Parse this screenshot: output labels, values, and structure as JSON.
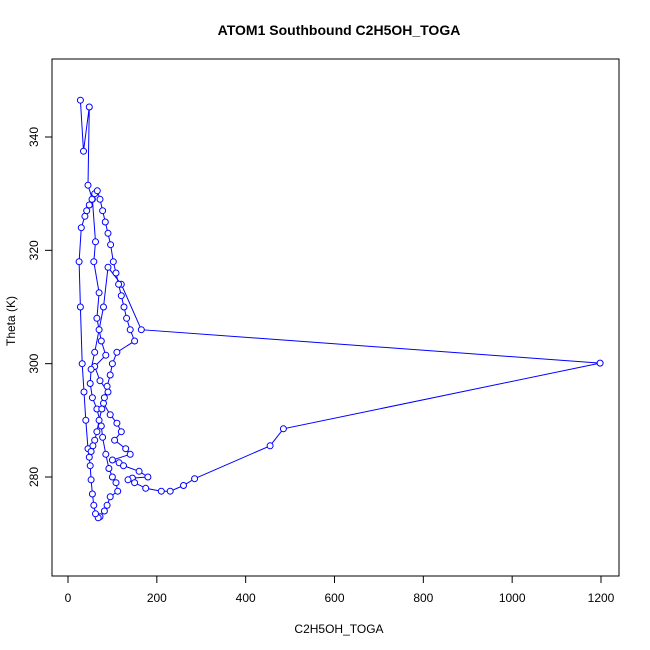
{
  "chart_data": {
    "type": "scatter",
    "mode": "lines+markers",
    "title": "ATOM1 Southbound C2H5OH_TOGA",
    "xlabel": "C2H5OH_TOGA",
    "ylabel": "Theta (K)",
    "xlim": [
      0,
      1200
    ],
    "ylim": [
      268,
      350
    ],
    "xticks": [
      0,
      200,
      400,
      600,
      800,
      1000,
      1200
    ],
    "yticks": [
      280,
      300,
      320,
      340
    ],
    "grid": false,
    "legend": "none",
    "color": "#0000ff",
    "series": [
      {
        "x": [
          28,
          35,
          48,
          45,
          55,
          62,
          58,
          70,
          65,
          75,
          85,
          60,
          72,
          90,
          80,
          95,
          110,
          120,
          105,
          130,
          140,
          100,
          115,
          125,
          160,
          180,
          145,
          135,
          150,
          175,
          210,
          230,
          260,
          285,
          455,
          485,
          1198,
          165,
          120,
          90,
          80,
          70,
          60,
          52,
          50,
          55,
          65,
          75,
          78,
          85,
          92,
          100,
          108,
          112,
          95,
          88,
          82,
          72,
          68,
          62,
          58,
          55,
          52,
          50,
          45,
          40,
          36,
          32,
          28,
          25,
          30,
          38,
          42,
          48,
          54,
          60,
          66,
          72,
          78,
          84,
          90,
          96,
          102,
          108,
          114,
          120,
          126,
          132,
          140,
          150,
          110,
          100,
          95,
          88,
          82,
          76,
          70,
          65,
          60,
          56,
          52,
          48
        ],
        "y": [
          346.5,
          337.5,
          345.3,
          331.5,
          329,
          321.5,
          318,
          312.5,
          308,
          304,
          301.5,
          299.5,
          297,
          295,
          293,
          291,
          289.5,
          288,
          286.5,
          285,
          284,
          283,
          282.5,
          282,
          281,
          280,
          279.8,
          279.5,
          279,
          278,
          277.5,
          277.5,
          278.5,
          279.7,
          285.5,
          288.5,
          300.1,
          306,
          314,
          317,
          310,
          306,
          302,
          299,
          296.5,
          294,
          292,
          289,
          287,
          284,
          281.5,
          280,
          279,
          277.5,
          276.5,
          275,
          274,
          273,
          272.8,
          273.5,
          275,
          277,
          279.5,
          282,
          285,
          290,
          295,
          300,
          310,
          318,
          324,
          326,
          327,
          328,
          329,
          330,
          330.5,
          329,
          327,
          325,
          323,
          321,
          318,
          316,
          314,
          312,
          310,
          308,
          306,
          304,
          302,
          300,
          298,
          296,
          294,
          292,
          290,
          288,
          286.5,
          285.5,
          284.5,
          283.5
        ]
      }
    ]
  }
}
